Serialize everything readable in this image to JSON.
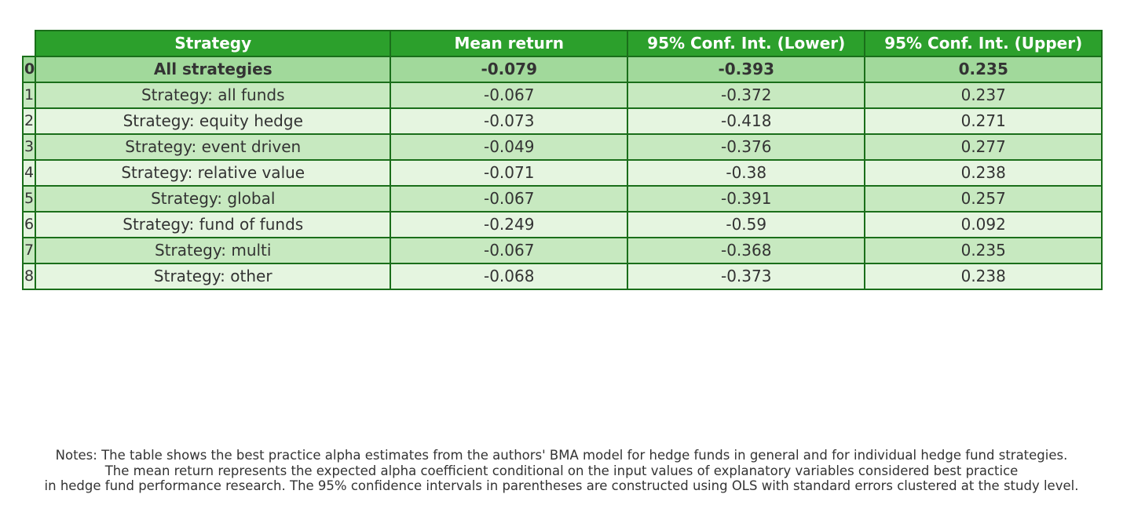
{
  "chart_data": {
    "type": "table",
    "columns": [
      "Strategy",
      "Mean return",
      "95% Conf. Int. (Lower)",
      "95% Conf. Int. (Upper)"
    ],
    "rows": [
      {
        "index": "0",
        "strategy": "All strategies",
        "mean": "-0.079",
        "lower": "-0.393",
        "upper": "0.235"
      },
      {
        "index": "1",
        "strategy": "Strategy: all funds",
        "mean": "-0.067",
        "lower": "-0.372",
        "upper": "0.237"
      },
      {
        "index": "2",
        "strategy": "Strategy: equity hedge",
        "mean": "-0.073",
        "lower": "-0.418",
        "upper": "0.271"
      },
      {
        "index": "3",
        "strategy": "Strategy: event driven",
        "mean": "-0.049",
        "lower": "-0.376",
        "upper": "0.277"
      },
      {
        "index": "4",
        "strategy": "Strategy: relative value",
        "mean": "-0.071",
        "lower": "-0.38",
        "upper": "0.238"
      },
      {
        "index": "5",
        "strategy": "Strategy: global",
        "mean": "-0.067",
        "lower": "-0.391",
        "upper": "0.257"
      },
      {
        "index": "6",
        "strategy": "Strategy: fund of funds",
        "mean": "-0.249",
        "lower": "-0.59",
        "upper": "0.092"
      },
      {
        "index": "7",
        "strategy": "Strategy: multi",
        "mean": "-0.067",
        "lower": "-0.368",
        "upper": "0.235"
      },
      {
        "index": "8",
        "strategy": "Strategy: other",
        "mean": "-0.068",
        "lower": "-0.373",
        "upper": "0.238"
      }
    ],
    "header_color": "#2ca02c",
    "total_row_color": "#a1d99b",
    "odd_row_color": "#c7e9c0",
    "even_row_color": "#e5f5e0",
    "border_color": "#1a6e1a"
  },
  "notes": [
    "Notes: The table shows the best practice alpha estimates from the authors' BMA model for hedge funds in general and for individual hedge fund strategies.",
    "The mean return represents the expected alpha coefficient conditional on the input values of explanatory variables considered best practice",
    "in hedge fund performance research. The 95% confidence intervals in parentheses are constructed using OLS with standard errors clustered at the study level."
  ]
}
